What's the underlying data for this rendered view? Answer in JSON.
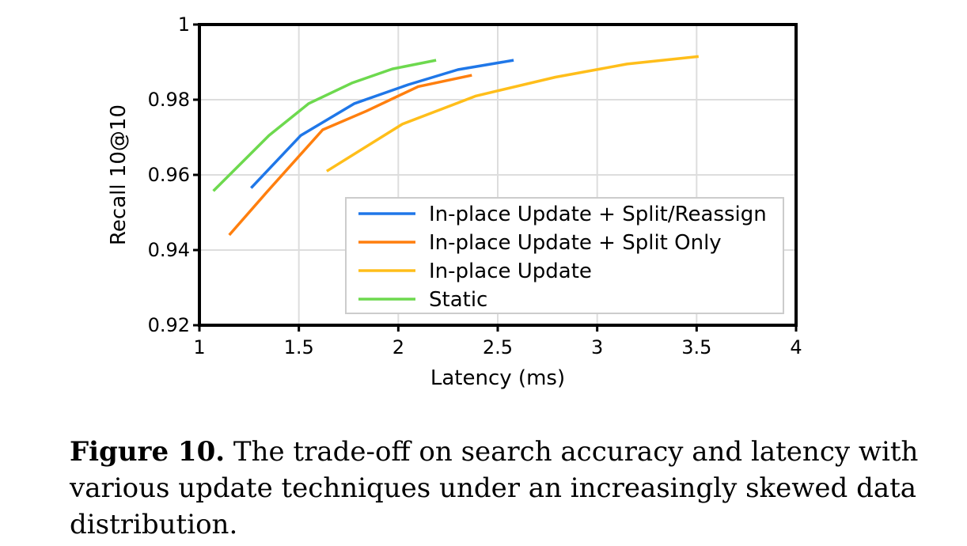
{
  "chart_data": {
    "type": "line",
    "xlabel": "Latency (ms)",
    "ylabel": "Recall 10@10",
    "xlim": [
      1,
      4
    ],
    "ylim": [
      0.92,
      1
    ],
    "xticks": [
      "1",
      "1.5",
      "2",
      "2.5",
      "3",
      "3.5",
      "4"
    ],
    "yticks": [
      "0.92",
      "0.94",
      "0.96",
      "0.98",
      "1"
    ],
    "grid": true,
    "legend_position": "lower-right",
    "series": [
      {
        "name": "In-place Update + Split/Reassign",
        "color": "#1f77e8",
        "x": [
          1.26,
          1.51,
          1.78,
          2.05,
          2.3,
          2.58
        ],
        "y": [
          0.9565,
          0.9705,
          0.979,
          0.984,
          0.988,
          0.9905
        ]
      },
      {
        "name": "In-place Update + Split Only",
        "color": "#ff7f0e",
        "x": [
          1.15,
          1.34,
          1.62,
          1.84,
          2.1,
          2.37
        ],
        "y": [
          0.944,
          0.9555,
          0.972,
          0.977,
          0.9835,
          0.9865
        ]
      },
      {
        "name": "In-place Update",
        "color": "#ffbe1a",
        "x": [
          1.64,
          2.02,
          2.39,
          2.79,
          3.15,
          3.51
        ],
        "y": [
          0.961,
          0.9735,
          0.981,
          0.986,
          0.9895,
          0.9915
        ]
      },
      {
        "name": "Static",
        "color": "#6dd94e",
        "x": [
          1.07,
          1.35,
          1.55,
          1.77,
          1.97,
          2.19
        ],
        "y": [
          0.9557,
          0.9705,
          0.979,
          0.9845,
          0.9882,
          0.9905
        ]
      }
    ]
  },
  "caption": {
    "label": "Figure 10.",
    "text": " The trade-off on search accuracy and latency with various update techniques under an increasingly skewed data distribution."
  }
}
